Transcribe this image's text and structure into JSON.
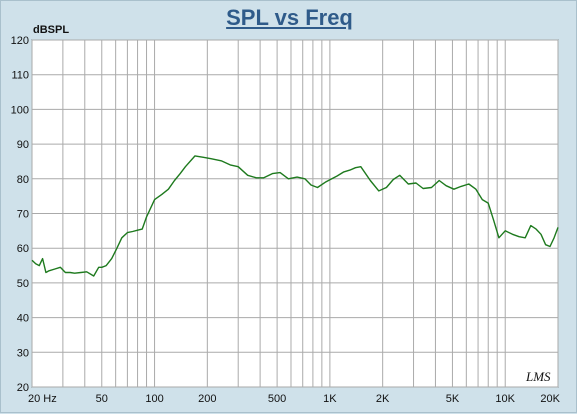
{
  "chart_data": {
    "type": "line",
    "title": "SPL vs Freq",
    "ylabel": "dBSPL",
    "xlabel": "",
    "xscale": "log",
    "xlim": [
      20,
      20000
    ],
    "ylim": [
      20,
      120
    ],
    "grid": true,
    "line_color": "#1e7a1e",
    "y_ticks": [
      20,
      30,
      40,
      50,
      60,
      70,
      80,
      90,
      100,
      110,
      120
    ],
    "x_ticks": [
      {
        "value": 20,
        "label": "20  Hz"
      },
      {
        "value": 50,
        "label": "50"
      },
      {
        "value": 100,
        "label": "100"
      },
      {
        "value": 200,
        "label": "200"
      },
      {
        "value": 500,
        "label": "500"
      },
      {
        "value": 1000,
        "label": "1K"
      },
      {
        "value": 2000,
        "label": "2K"
      },
      {
        "value": 5000,
        "label": "5K"
      },
      {
        "value": 10000,
        "label": "10K"
      },
      {
        "value": 20000,
        "label": "20K"
      }
    ],
    "series": [
      {
        "x": [
          20,
          21,
          22,
          23,
          24,
          25,
          27,
          29,
          31,
          33,
          35,
          38,
          41,
          45,
          48,
          50,
          53,
          57,
          61,
          65,
          70,
          75,
          80,
          85,
          90,
          100,
          110,
          120,
          130,
          140,
          150,
          170,
          190,
          210,
          240,
          270,
          300,
          340,
          380,
          420,
          470,
          520,
          580,
          650,
          720,
          780,
          850,
          940,
          1000,
          1100,
          1200,
          1300,
          1400,
          1500,
          1700,
          1900,
          2100,
          2300,
          2500,
          2800,
          3100,
          3400,
          3800,
          4200,
          4600,
          5100,
          5600,
          6200,
          6800,
          7400,
          8000,
          8600,
          9200,
          10000,
          11000,
          12000,
          13000,
          14000,
          15000,
          16000,
          17000,
          18000,
          19000,
          20000
        ],
        "values": [
          56.5,
          55.5,
          55,
          57,
          53,
          53.5,
          54,
          54.5,
          53,
          53,
          52.8,
          53,
          53.2,
          52,
          54.5,
          54.5,
          55,
          57,
          60,
          63,
          64.5,
          64.8,
          65.2,
          65.5,
          69,
          74,
          75.5,
          77,
          79.5,
          81.5,
          83.5,
          86.6,
          86.2,
          85.8,
          85.2,
          84,
          83.5,
          81,
          80.3,
          80.3,
          81.5,
          81.8,
          80,
          80.5,
          80,
          78.2,
          77.5,
          79,
          79.7,
          80.8,
          82,
          82.5,
          83.2,
          83.5,
          79.5,
          76.5,
          77.5,
          79.8,
          81,
          78.5,
          78.8,
          77.2,
          77.5,
          79.5,
          78,
          77,
          77.8,
          78.5,
          77,
          74,
          73,
          68,
          63,
          65,
          64,
          63.3,
          63,
          66.5,
          65.5,
          64,
          61,
          60.5,
          63,
          66
        ]
      }
    ]
  },
  "logo_text": "LMS"
}
